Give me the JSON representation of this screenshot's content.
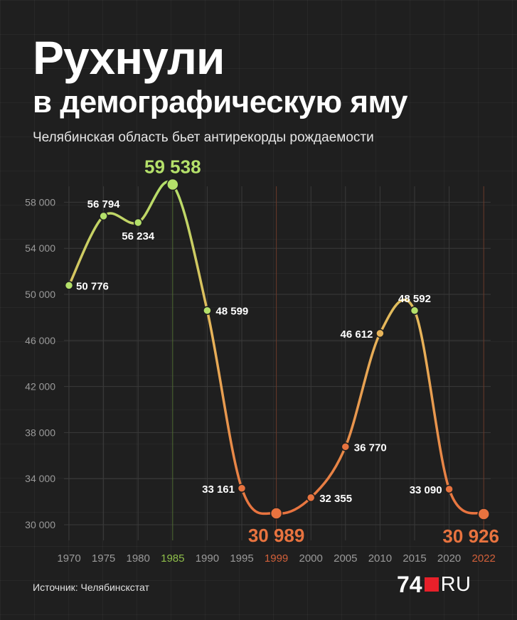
{
  "title_line1": "Рухнули",
  "title_line2": "в демографическую яму",
  "subtitle": "Челябинская область бьет антирекорды рождаемости",
  "source": "Источник: Челябинскстат",
  "logo": {
    "number": "74",
    "suffix": "RU"
  },
  "colors": {
    "background": "#1f1f1f",
    "grid": "#3a3a3a",
    "tick_label": "#9a9a9a",
    "high": "#b4e06a",
    "mid": "#e8b55a",
    "low": "#e8733f",
    "label": "#ffffff"
  },
  "chart_data": {
    "type": "line",
    "x": [
      "1970",
      "1975",
      "1980",
      "1985",
      "1990",
      "1995",
      "1999",
      "2000",
      "2005",
      "2010",
      "2015",
      "2020",
      "2022"
    ],
    "y_ticks": [
      "30 000",
      "34 000",
      "38 000",
      "42 000",
      "46 000",
      "50 000",
      "54 000",
      "58 000"
    ],
    "ylim": [
      30000,
      59538
    ],
    "series": [
      {
        "values": [
          50776,
          56794,
          56234,
          59538,
          48599,
          33161,
          30989,
          32355,
          36770,
          46612,
          48592,
          33090,
          30926
        ],
        "labels": [
          "50 776",
          "56 794",
          "56 234",
          "59 538",
          "48 599",
          "33 161",
          "30 989",
          "32 355",
          "36 770",
          "46 612",
          "48 592",
          "33 090",
          "30 926"
        ]
      }
    ],
    "highlights": {
      "max_index": 3,
      "min_indices": [
        6,
        12
      ]
    },
    "grid": true,
    "smooth": true
  }
}
